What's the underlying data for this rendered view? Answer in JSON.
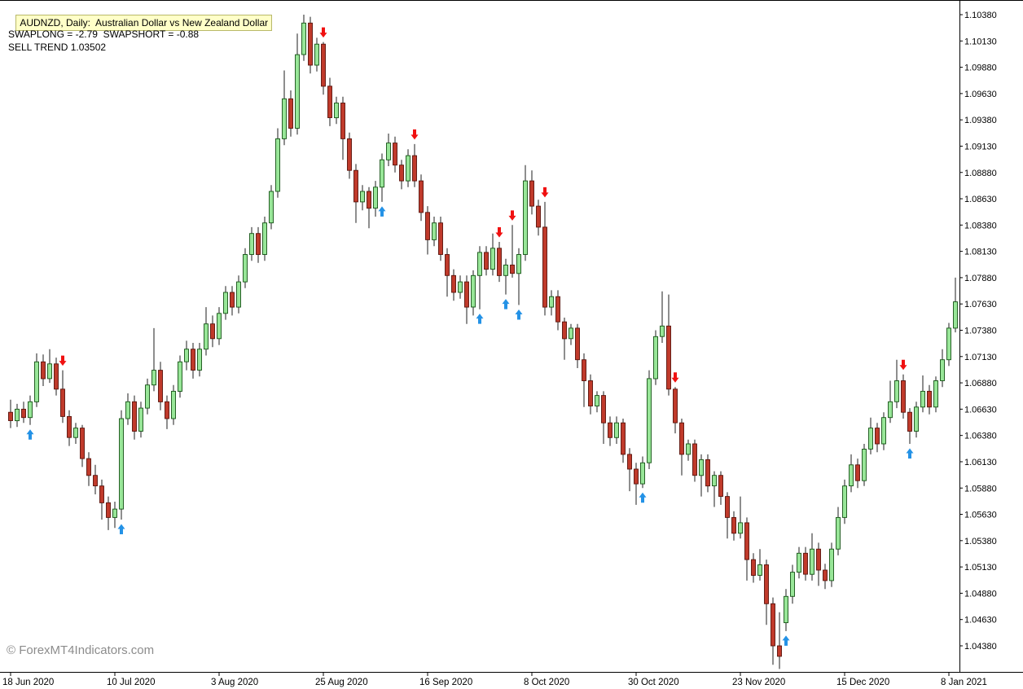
{
  "header": {
    "title": "AUDNZD, Daily:  Australian Dollar vs New Zealand Dollar",
    "swap_line": "SWAPLONG = -2.79  SWAPSHORT = -0.88",
    "trend_line": "SELL TREND 1.03502"
  },
  "footer": {
    "watermark": "© ForexMT4Indicators.com"
  },
  "chart_data": {
    "type": "candlestick",
    "symbol": "AUDNZD",
    "timeframe": "Daily",
    "description": "Australian Dollar vs New Zealand Dollar",
    "y_axis": {
      "min": 1.0438,
      "max": 1.1038,
      "step": 0.0025,
      "labels": [
        "1.10380",
        "1.10130",
        "1.09880",
        "1.09630",
        "1.09380",
        "1.09130",
        "1.08880",
        "1.08630",
        "1.08380",
        "1.08130",
        "1.07880",
        "1.07630",
        "1.07380",
        "1.07130",
        "1.06880",
        "1.06630",
        "1.06380",
        "1.06130",
        "1.05880",
        "1.05630",
        "1.05380",
        "1.05130",
        "1.04880",
        "1.04630",
        "1.04380"
      ]
    },
    "x_axis": {
      "labels": [
        "18 Jun 2020",
        "10 Jul 2020",
        "3 Aug 2020",
        "25 Aug 2020",
        "16 Sep 2020",
        "8 Oct 2020",
        "30 Oct 2020",
        "23 Nov 2020",
        "15 Dec 2020",
        "8 Jan 2021"
      ],
      "tick_indices": [
        0,
        16,
        32,
        48,
        64,
        80,
        96,
        112,
        128,
        144
      ]
    },
    "columns": [
      "open",
      "high",
      "low",
      "close"
    ],
    "candles": [
      [
        1.066,
        1.0672,
        1.0645,
        1.0652
      ],
      [
        1.0652,
        1.0668,
        1.0646,
        1.0663
      ],
      [
        1.0663,
        1.067,
        1.065,
        1.0655
      ],
      [
        1.0655,
        1.0676,
        1.0648,
        1.067
      ],
      [
        1.067,
        1.0716,
        1.0665,
        1.0708
      ],
      [
        1.0708,
        1.0715,
        1.0685,
        1.0692
      ],
      [
        1.0692,
        1.072,
        1.0688,
        1.0706
      ],
      [
        1.0706,
        1.0712,
        1.0676,
        1.0682
      ],
      [
        1.0682,
        1.07,
        1.065,
        1.0656
      ],
      [
        1.0656,
        1.0662,
        1.0628,
        1.0636
      ],
      [
        1.0636,
        1.065,
        1.063,
        1.0645
      ],
      [
        1.0645,
        1.0648,
        1.0608,
        1.0616
      ],
      [
        1.0616,
        1.0622,
        1.059,
        1.06
      ],
      [
        1.06,
        1.061,
        1.0582,
        1.059
      ],
      [
        1.059,
        1.0596,
        1.0558,
        1.0574
      ],
      [
        1.0574,
        1.058,
        1.0548,
        1.056
      ],
      [
        1.056,
        1.0575,
        1.055,
        1.0568
      ],
      [
        1.0568,
        1.0662,
        1.0558,
        1.0654
      ],
      [
        1.0654,
        1.0678,
        1.0648,
        1.067
      ],
      [
        1.067,
        1.0676,
        1.0634,
        1.0642
      ],
      [
        1.0642,
        1.067,
        1.0636,
        1.0664
      ],
      [
        1.0664,
        1.0692,
        1.0658,
        1.0686
      ],
      [
        1.0686,
        1.074,
        1.068,
        1.07
      ],
      [
        1.07,
        1.0708,
        1.0662,
        1.067
      ],
      [
        1.067,
        1.0676,
        1.0644,
        1.0654
      ],
      [
        1.0654,
        1.0686,
        1.0648,
        1.068
      ],
      [
        1.068,
        1.0714,
        1.0674,
        1.0708
      ],
      [
        1.0708,
        1.0728,
        1.07,
        1.072
      ],
      [
        1.072,
        1.0726,
        1.0692,
        1.07
      ],
      [
        1.07,
        1.0726,
        1.0694,
        1.072
      ],
      [
        1.072,
        1.076,
        1.0714,
        1.0744
      ],
      [
        1.0744,
        1.0752,
        1.0722,
        1.073
      ],
      [
        1.073,
        1.076,
        1.0724,
        1.0754
      ],
      [
        1.0754,
        1.078,
        1.0748,
        1.0774
      ],
      [
        1.0774,
        1.078,
        1.0752,
        1.076
      ],
      [
        1.076,
        1.079,
        1.0754,
        1.0784
      ],
      [
        1.0784,
        1.0816,
        1.0778,
        1.081
      ],
      [
        1.081,
        1.0836,
        1.0804,
        1.083
      ],
      [
        1.083,
        1.0836,
        1.0802,
        1.081
      ],
      [
        1.081,
        1.0846,
        1.0804,
        1.084
      ],
      [
        1.084,
        1.0876,
        1.0834,
        1.087
      ],
      [
        1.087,
        1.093,
        1.0864,
        1.092
      ],
      [
        1.092,
        1.0985,
        1.0914,
        1.0958
      ],
      [
        1.0958,
        1.0966,
        1.0922,
        1.093
      ],
      [
        1.093,
        1.102,
        1.0924,
        1.1
      ],
      [
        1.1,
        1.1038,
        1.0994,
        1.103
      ],
      [
        1.103,
        1.1036,
        1.0982,
        1.099
      ],
      [
        1.099,
        1.1016,
        1.0984,
        1.101
      ],
      [
        1.101,
        1.1012,
        1.0962,
        1.097
      ],
      [
        1.097,
        1.0978,
        1.0932,
        1.094
      ],
      [
        1.094,
        1.096,
        1.0934,
        1.0954
      ],
      [
        1.0954,
        1.096,
        1.09,
        1.092
      ],
      [
        1.092,
        1.0926,
        1.0882,
        1.089
      ],
      [
        1.089,
        1.0896,
        1.084,
        1.086
      ],
      [
        1.086,
        1.0876,
        1.0852,
        1.087
      ],
      [
        1.087,
        1.0874,
        1.0835,
        1.0854
      ],
      [
        1.0854,
        1.088,
        1.0846,
        1.0874
      ],
      [
        1.0874,
        1.0906,
        1.086,
        1.09
      ],
      [
        1.09,
        1.0925,
        1.0894,
        1.0916
      ],
      [
        1.0916,
        1.0922,
        1.0888,
        1.0895
      ],
      [
        1.0895,
        1.09,
        1.0872,
        1.088
      ],
      [
        1.088,
        1.091,
        1.0874,
        1.0904
      ],
      [
        1.0904,
        1.0915,
        1.0874,
        1.088
      ],
      [
        1.088,
        1.0886,
        1.0842,
        1.085
      ],
      [
        1.085,
        1.0856,
        1.081,
        1.0824
      ],
      [
        1.0824,
        1.0846,
        1.0818,
        1.084
      ],
      [
        1.084,
        1.0846,
        1.0804,
        1.081
      ],
      [
        1.081,
        1.0816,
        1.077,
        1.079
      ],
      [
        1.079,
        1.0796,
        1.0766,
        1.0774
      ],
      [
        1.0774,
        1.079,
        1.0768,
        1.0784
      ],
      [
        1.0784,
        1.079,
        1.0744,
        1.076
      ],
      [
        1.076,
        1.0795,
        1.0752,
        1.079
      ],
      [
        1.079,
        1.0818,
        1.0758,
        1.0812
      ],
      [
        1.0812,
        1.0818,
        1.079,
        1.0796
      ],
      [
        1.0796,
        1.083,
        1.079,
        1.0816
      ],
      [
        1.0816,
        1.0822,
        1.0784,
        1.079
      ],
      [
        1.079,
        1.0806,
        1.0772,
        1.08
      ],
      [
        1.08,
        1.0838,
        1.0788,
        1.0792
      ],
      [
        1.0792,
        1.0816,
        1.0762,
        1.081
      ],
      [
        1.081,
        1.0895,
        1.0804,
        1.088
      ],
      [
        1.088,
        1.089,
        1.0848,
        1.0856
      ],
      [
        1.0856,
        1.0862,
        1.0828,
        1.0836
      ],
      [
        1.0836,
        1.086,
        1.0752,
        1.076
      ],
      [
        1.076,
        1.0776,
        1.0752,
        1.077
      ],
      [
        1.077,
        1.0776,
        1.0738,
        1.0746
      ],
      [
        1.0746,
        1.075,
        1.071,
        1.073
      ],
      [
        1.073,
        1.0744,
        1.0724,
        1.074
      ],
      [
        1.074,
        1.0744,
        1.0702,
        1.071
      ],
      [
        1.071,
        1.0716,
        1.0665,
        1.069
      ],
      [
        1.069,
        1.0696,
        1.0658,
        1.0666
      ],
      [
        1.0666,
        1.068,
        1.066,
        1.0676
      ],
      [
        1.0676,
        1.068,
        1.063,
        1.065
      ],
      [
        1.065,
        1.0656,
        1.0628,
        1.0636
      ],
      [
        1.0636,
        1.0656,
        1.063,
        1.065
      ],
      [
        1.065,
        1.0654,
        1.0612,
        1.062
      ],
      [
        1.062,
        1.0626,
        1.0585,
        1.0606
      ],
      [
        1.0606,
        1.0612,
        1.0572,
        1.0592
      ],
      [
        1.0592,
        1.0618,
        1.0588,
        1.0612
      ],
      [
        1.0612,
        1.07,
        1.0606,
        1.0692
      ],
      [
        1.0692,
        1.0738,
        1.0686,
        1.0732
      ],
      [
        1.0732,
        1.0775,
        1.0726,
        1.0742
      ],
      [
        1.0742,
        1.0772,
        1.0676,
        1.0682
      ],
      [
        1.0682,
        1.0684,
        1.064,
        1.065
      ],
      [
        1.065,
        1.0654,
        1.06,
        1.062
      ],
      [
        1.062,
        1.0634,
        1.0614,
        1.063
      ],
      [
        1.063,
        1.0634,
        1.0594,
        1.06
      ],
      [
        1.06,
        1.062,
        1.058,
        1.0615
      ],
      [
        1.0615,
        1.062,
        1.0584,
        1.059
      ],
      [
        1.059,
        1.0604,
        1.057,
        1.06
      ],
      [
        1.06,
        1.0604,
        1.0572,
        1.058
      ],
      [
        1.058,
        1.0584,
        1.054,
        1.056
      ],
      [
        1.056,
        1.0566,
        1.0538,
        1.0545
      ],
      [
        1.0545,
        1.058,
        1.054,
        1.0555
      ],
      [
        1.0555,
        1.056,
        1.05,
        1.052
      ],
      [
        1.052,
        1.0526,
        1.0498,
        1.0505
      ],
      [
        1.0505,
        1.053,
        1.05,
        1.0515
      ],
      [
        1.0515,
        1.052,
        1.0458,
        1.0478
      ],
      [
        1.0478,
        1.0484,
        1.042,
        1.0438
      ],
      [
        1.0438,
        1.047,
        1.0416,
        1.0428
      ],
      [
        1.046,
        1.0492,
        1.0452,
        1.0485
      ],
      [
        1.0485,
        1.0515,
        1.0478,
        1.0508
      ],
      [
        1.0508,
        1.0532,
        1.0502,
        1.0526
      ],
      [
        1.0526,
        1.0532,
        1.05,
        1.0506
      ],
      [
        1.0506,
        1.0545,
        1.05,
        1.053
      ],
      [
        1.053,
        1.0536,
        1.0495,
        1.051
      ],
      [
        1.051,
        1.0516,
        1.0492,
        1.05
      ],
      [
        1.05,
        1.0536,
        1.0494,
        1.053
      ],
      [
        1.053,
        1.057,
        1.0524,
        1.056
      ],
      [
        1.056,
        1.0596,
        1.0554,
        1.059
      ],
      [
        1.059,
        1.062,
        1.0584,
        1.061
      ],
      [
        1.061,
        1.0616,
        1.0588,
        1.0595
      ],
      [
        1.0595,
        1.063,
        1.059,
        1.0625
      ],
      [
        1.0625,
        1.0655,
        1.062,
        1.0645
      ],
      [
        1.0645,
        1.065,
        1.0622,
        1.063
      ],
      [
        1.063,
        1.066,
        1.0624,
        1.0655
      ],
      [
        1.0655,
        1.069,
        1.065,
        1.067
      ],
      [
        1.067,
        1.071,
        1.0664,
        1.069
      ],
      [
        1.069,
        1.0696,
        1.0654,
        1.066
      ],
      [
        1.066,
        1.0664,
        1.063,
        1.0642
      ],
      [
        1.0642,
        1.067,
        1.0636,
        1.0665
      ],
      [
        1.0665,
        1.0695,
        1.066,
        1.068
      ],
      [
        1.068,
        1.0686,
        1.0658,
        1.0665
      ],
      [
        1.0665,
        1.0694,
        1.066,
        1.069
      ],
      [
        1.069,
        1.072,
        1.0684,
        1.071
      ],
      [
        1.071,
        1.0745,
        1.0704,
        1.074
      ],
      [
        1.074,
        1.0788,
        1.0736,
        1.0765
      ]
    ],
    "signals": [
      {
        "index": 3,
        "type": "buy"
      },
      {
        "index": 8,
        "type": "sell"
      },
      {
        "index": 17,
        "type": "buy"
      },
      {
        "index": 48,
        "type": "sell"
      },
      {
        "index": 57,
        "type": "buy"
      },
      {
        "index": 62,
        "type": "sell"
      },
      {
        "index": 72,
        "type": "buy"
      },
      {
        "index": 75,
        "type": "sell"
      },
      {
        "index": 76,
        "type": "buy"
      },
      {
        "index": 77,
        "type": "sell"
      },
      {
        "index": 78,
        "type": "buy"
      },
      {
        "index": 82,
        "type": "sell"
      },
      {
        "index": 97,
        "type": "buy"
      },
      {
        "index": 102,
        "type": "sell"
      },
      {
        "index": 119,
        "type": "buy"
      },
      {
        "index": 137,
        "type": "sell"
      },
      {
        "index": 138,
        "type": "buy"
      }
    ],
    "legend_position": "none",
    "grid": false,
    "colors": {
      "background": "#FFFFFF",
      "bull_fill": "#98E698",
      "bull_stroke": "#145214",
      "bear_fill": "#C03A2B",
      "bear_stroke": "#5A120A",
      "wick": "#1E1E1E",
      "buy_arrow": "#2492E6",
      "sell_arrow": "#F01111",
      "axis_text": "#000000",
      "axis_line": "#000000",
      "highlight_bg": "#FFFFC8",
      "highlight_border": "#B9B96A",
      "watermark": "#8C8C8C"
    }
  }
}
